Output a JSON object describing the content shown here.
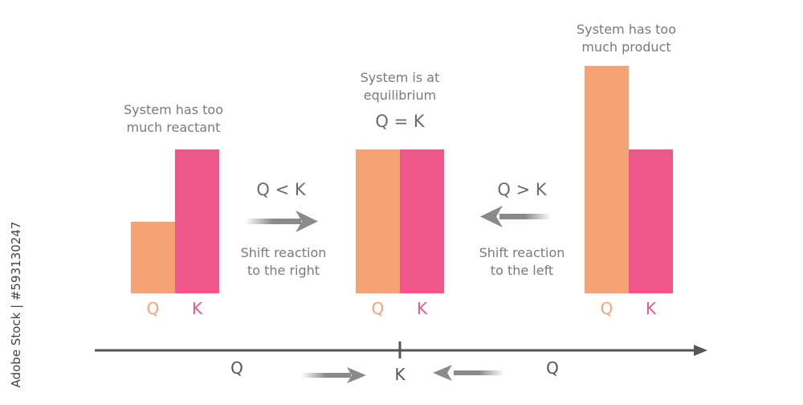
{
  "colors": {
    "q": "#F5A275",
    "k": "#EF5689",
    "text": "#7a7a7a",
    "axis": "#555555",
    "arrow": "#8a8a8a"
  },
  "panels": [
    {
      "caption": [
        "System has too",
        "much reactant"
      ],
      "q_label": "Q",
      "k_label": "K",
      "values": {
        "Q": 0.5,
        "K": 1
      }
    },
    {
      "caption": [
        "System is at",
        "equilibrium"
      ],
      "relation": "Q = K",
      "q_label": "Q",
      "k_label": "K",
      "values": {
        "Q": 1,
        "K": 1
      }
    },
    {
      "caption": [
        "System has too",
        "much product"
      ],
      "q_label": "Q",
      "k_label": "K",
      "values": {
        "Q": 1.58,
        "K": 1
      }
    }
  ],
  "shifts": [
    {
      "relation": "Q < K",
      "text": [
        "Shift reaction",
        "to the right"
      ],
      "direction": "right"
    },
    {
      "relation": "Q > K",
      "text": [
        "Shift reaction",
        "to the left"
      ],
      "direction": "left"
    }
  ],
  "axis": {
    "left_label": "Q",
    "center_label": "K",
    "right_label": "Q"
  },
  "watermark": "Adobe Stock | #593130247"
}
